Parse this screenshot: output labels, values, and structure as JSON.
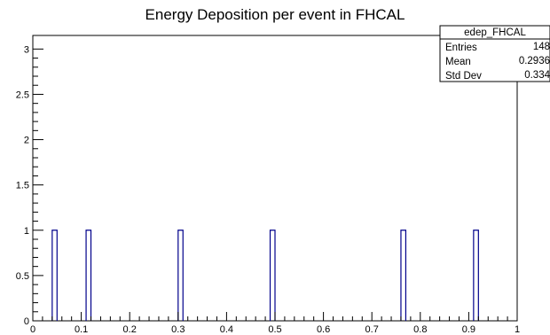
{
  "chart_data": {
    "type": "bar",
    "title": "Energy Deposition per event in FHCAL",
    "xlabel": "",
    "ylabel": "",
    "xlim": [
      0,
      1
    ],
    "ylim": [
      0,
      3.15
    ],
    "grid": false,
    "bin_width": 0.01,
    "x_ticks": [
      "0",
      "0.1",
      "0.2",
      "0.3",
      "0.4",
      "0.5",
      "0.6",
      "0.7",
      "0.8",
      "0.9",
      "1"
    ],
    "y_ticks": [
      "0",
      "0.5",
      "1",
      "1.5",
      "2",
      "2.5",
      "3"
    ],
    "series": [
      {
        "values_x": [
          0.045,
          0.115,
          0.305,
          0.495,
          0.765,
          0.915
        ],
        "values": [
          1,
          1,
          1,
          1,
          1,
          1
        ]
      }
    ],
    "stats_box": {
      "name": "edep_FHCAL",
      "rows": [
        {
          "label": "Entries",
          "value": "148"
        },
        {
          "label": "Mean",
          "value": "0.2936"
        },
        {
          "label": "Std Dev",
          "value": "0.334"
        }
      ]
    },
    "colors": {
      "line": "#00008b",
      "axis": "#000000"
    }
  }
}
